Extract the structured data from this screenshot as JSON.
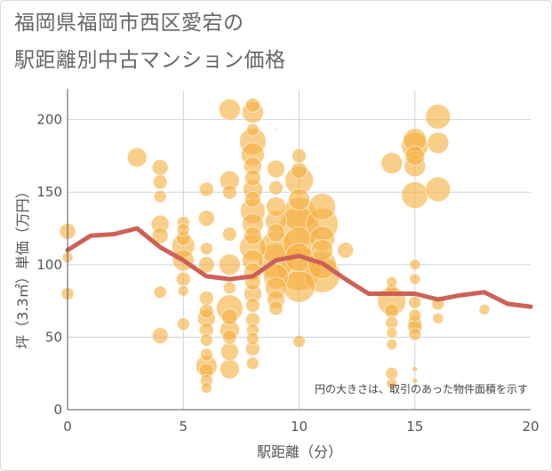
{
  "title": {
    "line1": "福岡県福岡市西区愛宕の",
    "line2": "駅距離別中古マンション価格"
  },
  "note": "円の大きさは、取引のあった物件面積を示す",
  "colors": {
    "bubble": "#f5b041",
    "line": "#cd6155",
    "grid": "#c8d3e0",
    "axis": "#555555"
  },
  "chart_data": {
    "type": "scatter",
    "xlabel": "駅距離（分）",
    "ylabel": "坪（3.3㎡）単価（万円）",
    "xlim": [
      0,
      20
    ],
    "ylim": [
      0,
      220
    ],
    "xticks": [
      0,
      5,
      10,
      15,
      20
    ],
    "yticks": [
      0,
      50,
      100,
      150,
      200
    ],
    "grid": true,
    "bubbles": [
      {
        "x": 0,
        "y": 123,
        "r": 9
      },
      {
        "x": 0,
        "y": 105,
        "r": 6
      },
      {
        "x": 0,
        "y": 80,
        "r": 7
      },
      {
        "x": 3,
        "y": 174,
        "r": 11
      },
      {
        "x": 4,
        "y": 167,
        "r": 9
      },
      {
        "x": 4,
        "y": 157,
        "r": 8
      },
      {
        "x": 4,
        "y": 147,
        "r": 7
      },
      {
        "x": 4,
        "y": 128,
        "r": 10
      },
      {
        "x": 4,
        "y": 120,
        "r": 9
      },
      {
        "x": 4,
        "y": 81,
        "r": 7
      },
      {
        "x": 4,
        "y": 51,
        "r": 9
      },
      {
        "x": 5,
        "y": 129,
        "r": 7
      },
      {
        "x": 5,
        "y": 124,
        "r": 7
      },
      {
        "x": 5,
        "y": 118,
        "r": 8
      },
      {
        "x": 5,
        "y": 113,
        "r": 13
      },
      {
        "x": 5,
        "y": 103,
        "r": 12
      },
      {
        "x": 5,
        "y": 90,
        "r": 8
      },
      {
        "x": 5,
        "y": 82,
        "r": 6
      },
      {
        "x": 5,
        "y": 59,
        "r": 7
      },
      {
        "x": 6,
        "y": 152,
        "r": 8
      },
      {
        "x": 6,
        "y": 132,
        "r": 9
      },
      {
        "x": 6,
        "y": 111,
        "r": 7
      },
      {
        "x": 6,
        "y": 100,
        "r": 9
      },
      {
        "x": 6,
        "y": 77,
        "r": 8
      },
      {
        "x": 6,
        "y": 68,
        "r": 8
      },
      {
        "x": 6,
        "y": 63,
        "r": 10
      },
      {
        "x": 6,
        "y": 55,
        "r": 8
      },
      {
        "x": 6,
        "y": 48,
        "r": 7
      },
      {
        "x": 6,
        "y": 38,
        "r": 7
      },
      {
        "x": 6,
        "y": 30,
        "r": 12
      },
      {
        "x": 6,
        "y": 27,
        "r": 8
      },
      {
        "x": 6,
        "y": 20,
        "r": 7
      },
      {
        "x": 6,
        "y": 15,
        "r": 6
      },
      {
        "x": 7,
        "y": 207,
        "r": 12
      },
      {
        "x": 7,
        "y": 158,
        "r": 11
      },
      {
        "x": 7,
        "y": 150,
        "r": 8
      },
      {
        "x": 7,
        "y": 121,
        "r": 8
      },
      {
        "x": 7,
        "y": 100,
        "r": 12
      },
      {
        "x": 7,
        "y": 84,
        "r": 7
      },
      {
        "x": 7,
        "y": 70,
        "r": 15
      },
      {
        "x": 7,
        "y": 64,
        "r": 9
      },
      {
        "x": 7,
        "y": 55,
        "r": 11
      },
      {
        "x": 7,
        "y": 50,
        "r": 8
      },
      {
        "x": 7,
        "y": 40,
        "r": 10
      },
      {
        "x": 7,
        "y": 28,
        "r": 11
      },
      {
        "x": 8,
        "y": 210,
        "r": 8
      },
      {
        "x": 8,
        "y": 205,
        "r": 12
      },
      {
        "x": 8,
        "y": 193,
        "r": 7
      },
      {
        "x": 8,
        "y": 185,
        "r": 15
      },
      {
        "x": 8,
        "y": 176,
        "r": 13
      },
      {
        "x": 8,
        "y": 168,
        "r": 10
      },
      {
        "x": 8,
        "y": 160,
        "r": 9
      },
      {
        "x": 8,
        "y": 152,
        "r": 11
      },
      {
        "x": 8,
        "y": 145,
        "r": 9
      },
      {
        "x": 8,
        "y": 137,
        "r": 14
      },
      {
        "x": 8,
        "y": 128,
        "r": 12
      },
      {
        "x": 8,
        "y": 120,
        "r": 10
      },
      {
        "x": 8,
        "y": 112,
        "r": 15
      },
      {
        "x": 8,
        "y": 103,
        "r": 12
      },
      {
        "x": 8,
        "y": 95,
        "r": 10
      },
      {
        "x": 8,
        "y": 88,
        "r": 9
      },
      {
        "x": 8,
        "y": 80,
        "r": 10
      },
      {
        "x": 8,
        "y": 72,
        "r": 8
      },
      {
        "x": 8,
        "y": 62,
        "r": 8
      },
      {
        "x": 8,
        "y": 55,
        "r": 7
      },
      {
        "x": 8,
        "y": 49,
        "r": 7
      },
      {
        "x": 8,
        "y": 42,
        "r": 8
      },
      {
        "x": 8,
        "y": 32,
        "r": 7
      },
      {
        "x": 9,
        "y": 193,
        "r": 1
      },
      {
        "x": 9,
        "y": 166,
        "r": 10
      },
      {
        "x": 9,
        "y": 153,
        "r": 8
      },
      {
        "x": 9,
        "y": 140,
        "r": 11
      },
      {
        "x": 9,
        "y": 130,
        "r": 12
      },
      {
        "x": 9,
        "y": 122,
        "r": 10
      },
      {
        "x": 9,
        "y": 112,
        "r": 18
      },
      {
        "x": 9,
        "y": 102,
        "r": 20
      },
      {
        "x": 9,
        "y": 92,
        "r": 14
      },
      {
        "x": 9,
        "y": 84,
        "r": 12
      },
      {
        "x": 9,
        "y": 76,
        "r": 10
      },
      {
        "x": 9,
        "y": 70,
        "r": 8
      },
      {
        "x": 10,
        "y": 175,
        "r": 8
      },
      {
        "x": 10,
        "y": 165,
        "r": 9
      },
      {
        "x": 10,
        "y": 158,
        "r": 16
      },
      {
        "x": 10,
        "y": 145,
        "r": 12
      },
      {
        "x": 10,
        "y": 135,
        "r": 19
      },
      {
        "x": 10,
        "y": 126,
        "r": 22
      },
      {
        "x": 10,
        "y": 115,
        "r": 18
      },
      {
        "x": 10,
        "y": 105,
        "r": 16
      },
      {
        "x": 10,
        "y": 97,
        "r": 24
      },
      {
        "x": 10,
        "y": 85,
        "r": 18
      },
      {
        "x": 10,
        "y": 47,
        "r": 7
      },
      {
        "x": 11,
        "y": 140,
        "r": 15
      },
      {
        "x": 11,
        "y": 128,
        "r": 18
      },
      {
        "x": 11,
        "y": 118,
        "r": 14
      },
      {
        "x": 11,
        "y": 110,
        "r": 12
      },
      {
        "x": 11,
        "y": 100,
        "r": 16
      },
      {
        "x": 11,
        "y": 93,
        "r": 20
      },
      {
        "x": 12,
        "y": 110,
        "r": 9
      },
      {
        "x": 14,
        "y": 170,
        "r": 12
      },
      {
        "x": 14,
        "y": 88,
        "r": 6
      },
      {
        "x": 14,
        "y": 82,
        "r": 7
      },
      {
        "x": 14,
        "y": 75,
        "r": 16
      },
      {
        "x": 14,
        "y": 68,
        "r": 8
      },
      {
        "x": 14,
        "y": 60,
        "r": 7
      },
      {
        "x": 14,
        "y": 53,
        "r": 6
      },
      {
        "x": 14,
        "y": 45,
        "r": 6
      },
      {
        "x": 14,
        "y": 25,
        "r": 7
      },
      {
        "x": 14,
        "y": 18,
        "r": 6
      },
      {
        "x": 15,
        "y": 186,
        "r": 13
      },
      {
        "x": 15,
        "y": 182,
        "r": 15
      },
      {
        "x": 15,
        "y": 175,
        "r": 11
      },
      {
        "x": 15,
        "y": 168,
        "r": 12
      },
      {
        "x": 15,
        "y": 148,
        "r": 15
      },
      {
        "x": 15,
        "y": 100,
        "r": 6
      },
      {
        "x": 15,
        "y": 90,
        "r": 6
      },
      {
        "x": 15,
        "y": 74,
        "r": 7
      },
      {
        "x": 15,
        "y": 65,
        "r": 7
      },
      {
        "x": 15,
        "y": 60,
        "r": 8
      },
      {
        "x": 15,
        "y": 57,
        "r": 8
      },
      {
        "x": 15,
        "y": 52,
        "r": 7
      },
      {
        "x": 15,
        "y": 28,
        "r": 3
      },
      {
        "x": 15,
        "y": 20,
        "r": 3
      },
      {
        "x": 16,
        "y": 202,
        "r": 14
      },
      {
        "x": 16,
        "y": 184,
        "r": 12
      },
      {
        "x": 16,
        "y": 152,
        "r": 14
      },
      {
        "x": 16,
        "y": 73,
        "r": 7
      },
      {
        "x": 16,
        "y": 63,
        "r": 6
      },
      {
        "x": 18,
        "y": 69,
        "r": 6
      }
    ],
    "line": {
      "x": [
        0,
        1,
        2,
        3,
        4,
        5,
        6,
        7,
        8,
        9,
        10,
        11,
        12,
        13,
        14,
        15,
        16,
        17,
        18,
        19,
        20
      ],
      "y": [
        110,
        120,
        121,
        125,
        112,
        103,
        92,
        90,
        92,
        103,
        106,
        101,
        90,
        80,
        80,
        80,
        76,
        79,
        81,
        73,
        71
      ]
    }
  }
}
